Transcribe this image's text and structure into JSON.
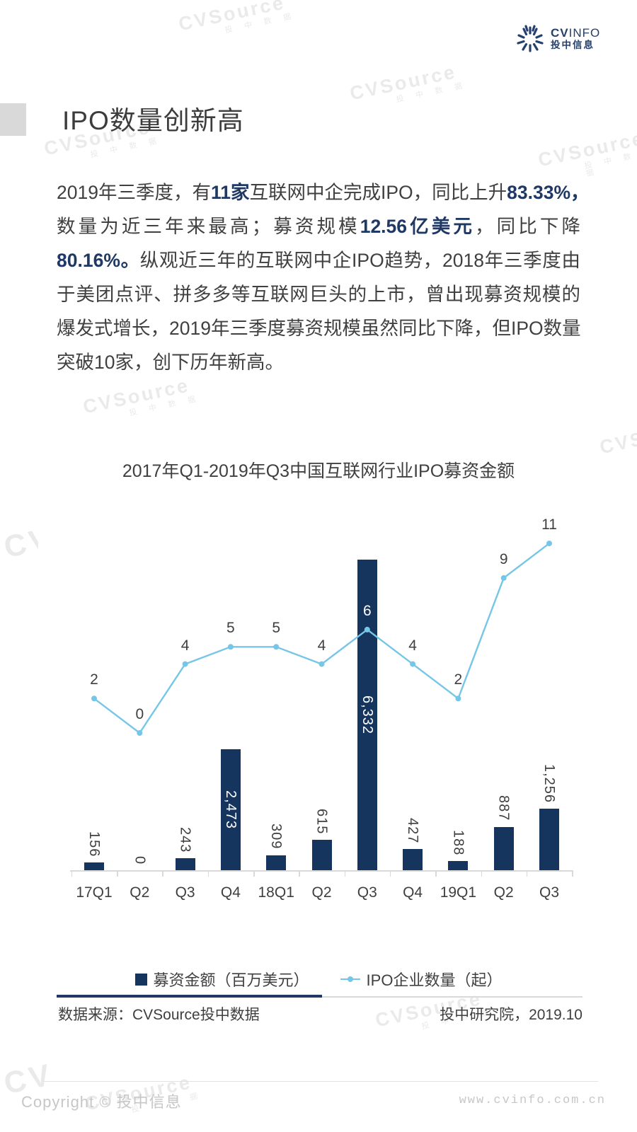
{
  "logo": {
    "brand_bold": "CV",
    "brand_light": "INFO",
    "brand_cn": "投中信息"
  },
  "page": {
    "title": "IPO数量创新高"
  },
  "paragraph": {
    "lines": [
      [
        {
          "t": "2019年三季度，有"
        },
        {
          "t": "11家",
          "b": true
        },
        {
          "t": "互联网中企完成IPO，同比上升"
        },
        {
          "t": "83.33%，",
          "b": true
        }
      ],
      [
        {
          "t": "数量为近三年来最高；募资规模"
        },
        {
          "t": "12.56亿美元",
          "b": true
        },
        {
          "t": "，同比下降"
        }
      ],
      [
        {
          "t": "80.16%。",
          "b": true
        },
        {
          "t": "纵观近三年的互联网中企IPO趋势，2018年三季度由"
        }
      ],
      [
        {
          "t": "于美团点评、拼多多等互联网巨头的上市，曾出现募资规模的"
        }
      ],
      [
        {
          "t": "爆发式增长，2019年三季度募资规模虽然同比下降，但IPO数量"
        }
      ],
      [
        {
          "t": "突破10家，创下历年新高。"
        }
      ]
    ]
  },
  "chart_data": {
    "type": "combo",
    "title": "2017年Q1-2019年Q3中国互联网行业IPO募资金额",
    "categories": [
      "17Q1",
      "Q2",
      "Q3",
      "Q4",
      "18Q1",
      "Q2",
      "Q3",
      "Q4",
      "19Q1",
      "Q2",
      "Q3"
    ],
    "series": [
      {
        "name": "募资金额（百万美元）",
        "type": "bar",
        "values": [
          156,
          0,
          243,
          2473,
          309,
          615,
          6332,
          427,
          188,
          887,
          1256
        ],
        "color": "#16355e"
      },
      {
        "name": "IPO企业数量（起）",
        "type": "line",
        "values": [
          2,
          0,
          4,
          5,
          5,
          4,
          6,
          4,
          2,
          9,
          11
        ],
        "color": "#76c6e8"
      }
    ],
    "legend_position": "bottom",
    "gridlines": false,
    "value_axis_visible": false
  },
  "footer": {
    "source": "数据来源：CVSource投中数据",
    "org": "投中研究院，2019.10"
  },
  "bottom": {
    "copyright": "Copyright © 投中信息",
    "url": "www.cvinfo.com.cn"
  },
  "watermark": {
    "text": "CVSource",
    "subtext": "投 中 数 据"
  },
  "colors": {
    "navy": "#1f3864",
    "bar": "#16355e",
    "line_blue": "#76c6e8",
    "axis_gray": "#d9d9d9",
    "title_gray": "#3c3c3c"
  }
}
